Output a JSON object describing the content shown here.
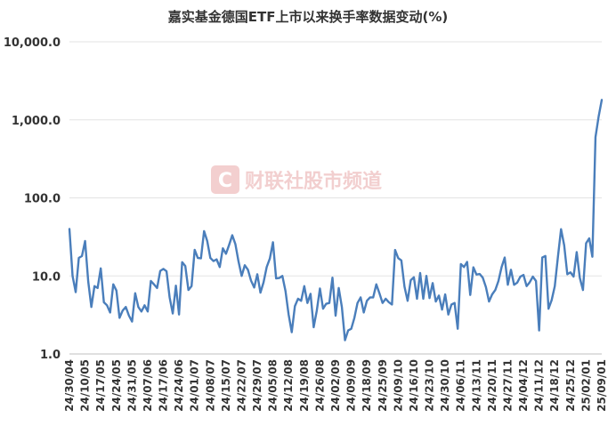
{
  "chart_data": {
    "type": "line",
    "title": "嘉实基金德国ETF上市以来换手率数据变动(%)",
    "xlabel": "",
    "ylabel": "",
    "yscale": "log",
    "ylim": [
      1.0,
      10000.0
    ],
    "yticks": [
      1.0,
      10.0,
      100.0,
      1000.0,
      10000.0
    ],
    "ytick_labels": [
      "1.0",
      "10.0",
      "100.0",
      "1,000.0",
      "10,000.0"
    ],
    "grid": "horizontal",
    "line_color": "#4a7ebb",
    "x_tick_labels": [
      "24/30/04",
      "24/10/05",
      "24/17/05",
      "24/24/05",
      "24/31/05",
      "24/07/06",
      "24/17/06",
      "24/24/06",
      "24/01/07",
      "24/08/07",
      "24/15/07",
      "24/22/07",
      "24/29/07",
      "24/05/08",
      "24/12/08",
      "24/19/08",
      "24/26/08",
      "24/02/09",
      "24/09/09",
      "24/18/09",
      "24/25/09",
      "24/09/10",
      "24/16/10",
      "24/23/10",
      "24/30/10",
      "24/06/11",
      "24/13/11",
      "24/20/11",
      "24/27/11",
      "24/04/12",
      "24/11/12",
      "24/18/12",
      "24/25/12",
      "25/02/01",
      "25/09/01"
    ],
    "values": [
      40,
      10,
      6.2,
      17,
      18,
      28,
      8.5,
      4,
      7.4,
      7,
      12.5,
      4.6,
      4.2,
      3.4,
      7.8,
      6.5,
      2.9,
      3.6,
      4,
      3.1,
      2.6,
      6,
      4,
      3.5,
      4.2,
      3.5,
      8.6,
      7.8,
      7,
      11.6,
      12.3,
      11.5,
      5.3,
      3.3,
      7.5,
      3.2,
      15,
      13.4,
      6.6,
      7.4,
      21.6,
      17,
      16.8,
      37.5,
      28,
      17,
      15.5,
      16.3,
      13,
      22.6,
      19.2,
      25,
      33.2,
      25.5,
      15.3,
      10,
      13.7,
      12,
      8.7,
      7.1,
      10.5,
      6.1,
      8.3,
      13,
      16.7,
      27,
      9.3,
      9.4,
      10,
      6.4,
      3.2,
      1.9,
      4.1,
      5.1,
      4.8,
      7.4,
      4.5,
      5.9,
      2.2,
      3.6,
      6.9,
      3.8,
      4.4,
      4.5,
      9.5,
      3.1,
      7,
      4,
      1.5,
      2,
      2.1,
      2.9,
      4.5,
      5.3,
      3.4,
      4.8,
      5.3,
      5.3,
      7.8,
      6,
      4.5,
      5.1,
      4.6,
      4.3,
      21.5,
      16.9,
      15.8,
      7.3,
      4.8,
      8.8,
      9.6,
      5.1,
      10.9,
      5.1,
      10,
      5.2,
      8.1,
      4.7,
      5.6,
      3.7,
      5.8,
      3.2,
      4.3,
      4.5,
      2.1,
      14.2,
      13,
      15.1,
      5.7,
      12.9,
      10.4,
      10.6,
      9.5,
      7.2,
      4.7,
      5.8,
      6.6,
      8.6,
      12.9,
      17.2,
      7.7,
      12,
      7.7,
      8.2,
      9.8,
      10.3,
      7.4,
      8.3,
      9.8,
      8.6,
      2,
      17.2,
      18,
      3.8,
      4.9,
      7.4,
      17.5,
      39.7,
      24.7,
      10.5,
      11.1,
      9.8,
      20.2,
      9.4,
      6.6,
      26.2,
      30.3,
      17.6,
      600,
      1100,
      1800
    ]
  },
  "watermark": {
    "logo_glyph": "C",
    "text": "财联社股市频道",
    "color": "#e9a8a8"
  }
}
